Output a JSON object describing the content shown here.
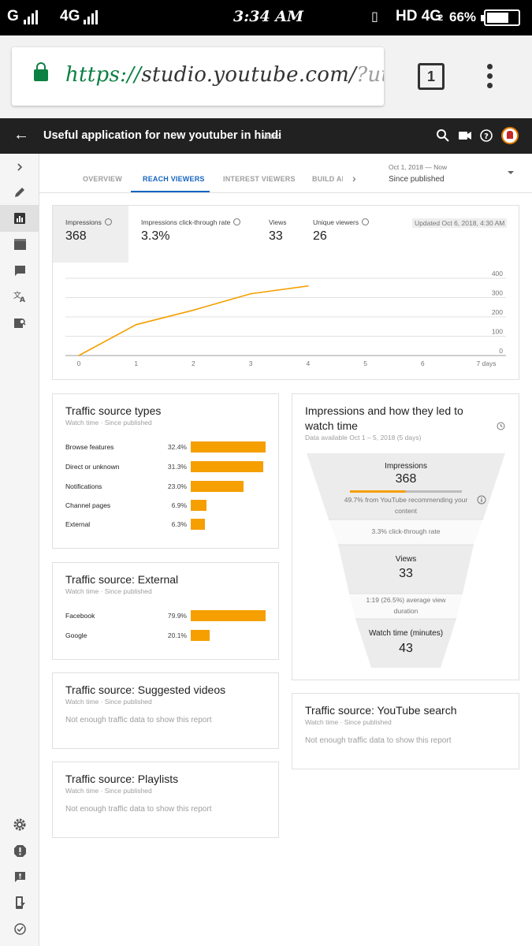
{
  "status_bar": {
    "carrier1": "G",
    "carrier2": "4G",
    "time": "3:34 AM",
    "network": "HD 4G",
    "network_sub": "2",
    "battery": "66%"
  },
  "browser": {
    "url_protocol": "https://",
    "url_host": "studio.youtube.com/",
    "url_rest": "?utm",
    "tab_count": "1"
  },
  "header": {
    "title": "Useful application for new youtuber in hindi",
    "tag": "Video"
  },
  "tabs": [
    {
      "label": "OVERVIEW"
    },
    {
      "label": "REACH VIEWERS"
    },
    {
      "label": "INTEREST VIEWERS"
    },
    {
      "label": "BUILD AN AUDIENCE"
    }
  ],
  "date_filter": {
    "range": "Oct 1, 2018 — Now",
    "label": "Since published"
  },
  "metrics": [
    {
      "label": "Impressions",
      "value": "368"
    },
    {
      "label": "Impressions click-through rate",
      "value": "3.3%"
    },
    {
      "label": "Views",
      "value": "33"
    },
    {
      "label": "Unique viewers",
      "value": "26"
    }
  ],
  "updated": "Updated Oct 6, 2018, 4:30 AM",
  "chart_data": {
    "type": "line",
    "title": "Impressions",
    "x": [
      0,
      1,
      2,
      3,
      4
    ],
    "y": [
      0,
      160,
      235,
      320,
      360
    ],
    "x_ticks": [
      "0",
      "1",
      "2",
      "3",
      "4",
      "5",
      "6",
      "7 days"
    ],
    "y_ticks": [
      "400",
      "300",
      "200",
      "100",
      "0"
    ],
    "xlim": [
      0,
      7
    ],
    "ylim": [
      0,
      400
    ],
    "grid": true,
    "color": "#f59f00"
  },
  "traffic_types": {
    "title": "Traffic source types",
    "subtitle": "Watch time · Since published",
    "rows": [
      {
        "label": "Browse features",
        "pct": "32.4%",
        "value": 32.4
      },
      {
        "label": "Direct or unknown",
        "pct": "31.3%",
        "value": 31.3
      },
      {
        "label": "Notifications",
        "pct": "23.0%",
        "value": 23.0
      },
      {
        "label": "Channel pages",
        "pct": "6.9%",
        "value": 6.9
      },
      {
        "label": "External",
        "pct": "6.3%",
        "value": 6.3
      }
    ]
  },
  "traffic_external": {
    "title": "Traffic source: External",
    "subtitle": "Watch time · Since published",
    "rows": [
      {
        "label": "Facebook",
        "pct": "79.9%",
        "value": 79.9
      },
      {
        "label": "Google",
        "pct": "20.1%",
        "value": 20.1
      }
    ]
  },
  "traffic_suggested": {
    "title": "Traffic source: Suggested videos",
    "subtitle": "Watch time · Since published",
    "message": "Not enough traffic data to show this report"
  },
  "traffic_playlists": {
    "title": "Traffic source: Playlists",
    "subtitle": "Watch time · Since published",
    "message": "Not enough traffic data to show this report"
  },
  "traffic_search": {
    "title": "Traffic source: YouTube search",
    "subtitle": "Watch time · Since published",
    "message": "Not enough traffic data to show this report"
  },
  "funnel": {
    "title_line1": "Impressions and how they led to",
    "title_line2": "watch time",
    "subtitle": "Data available Oct 1 – 5, 2018 (5 days)",
    "impressions_label": "Impressions",
    "impressions_value": "368",
    "youtube_share": 49.7,
    "recommend_line1": "49.7% from YouTube recommending your",
    "recommend_line2": "content",
    "ctr_text": "3.3% click-through rate",
    "views_label": "Views",
    "views_value": "33",
    "avd_line1": "1:19 (26.5%) average view",
    "avd_line2": "duration",
    "watch_label": "Watch time (minutes)",
    "watch_value": "43",
    "accent": "#f59f00"
  }
}
